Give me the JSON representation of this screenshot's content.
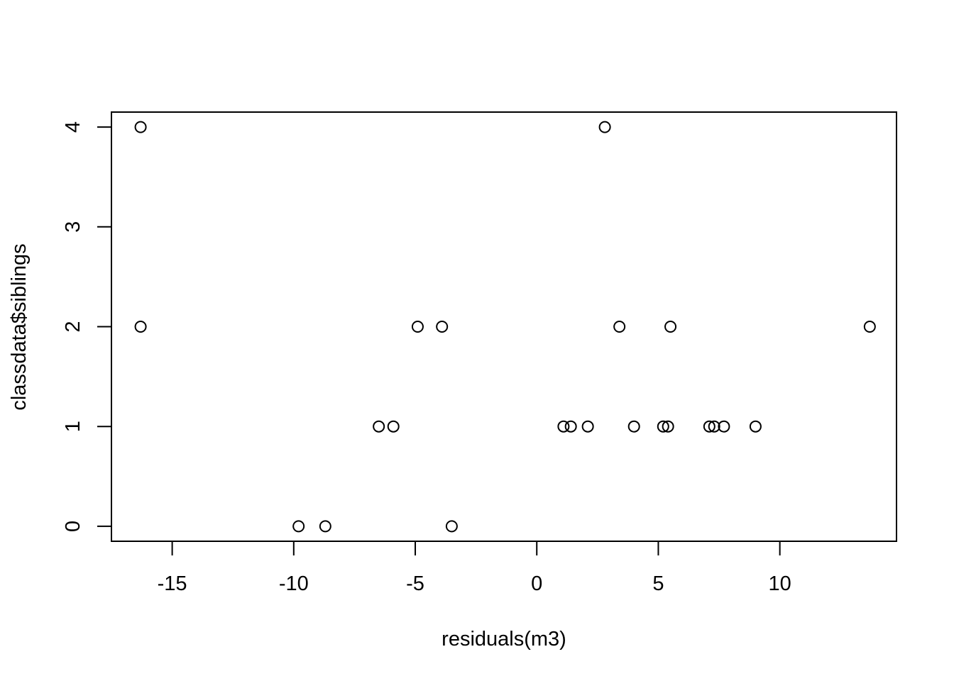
{
  "chart_data": {
    "type": "scatter",
    "title": "",
    "xlabel": "residuals(m3)",
    "ylabel": "classdata$siblings",
    "xlim": [
      -17.5,
      14.8
    ],
    "ylim": [
      -0.15,
      4.15
    ],
    "x_ticks": [
      -15,
      -10,
      -5,
      0,
      5,
      10
    ],
    "x_tick_labels": [
      "-15",
      "-10",
      "-5",
      "0",
      "5",
      "10"
    ],
    "y_ticks": [
      0,
      1,
      2,
      3,
      4
    ],
    "y_tick_labels": [
      "0",
      "1",
      "2",
      "3",
      "4"
    ],
    "grid": false,
    "legend": "none",
    "points": [
      {
        "x": -16.3,
        "y": 4
      },
      {
        "x": -16.3,
        "y": 2
      },
      {
        "x": -9.8,
        "y": 0
      },
      {
        "x": -8.7,
        "y": 0
      },
      {
        "x": -6.5,
        "y": 1
      },
      {
        "x": -5.9,
        "y": 1
      },
      {
        "x": -4.9,
        "y": 2
      },
      {
        "x": -3.9,
        "y": 2
      },
      {
        "x": -3.5,
        "y": 0
      },
      {
        "x": 1.1,
        "y": 1
      },
      {
        "x": 1.4,
        "y": 1
      },
      {
        "x": 2.1,
        "y": 1
      },
      {
        "x": 2.8,
        "y": 4
      },
      {
        "x": 3.4,
        "y": 2
      },
      {
        "x": 4.0,
        "y": 1
      },
      {
        "x": 5.2,
        "y": 1
      },
      {
        "x": 5.4,
        "y": 1
      },
      {
        "x": 5.5,
        "y": 2
      },
      {
        "x": 7.1,
        "y": 1
      },
      {
        "x": 7.3,
        "y": 1
      },
      {
        "x": 7.7,
        "y": 1
      },
      {
        "x": 9.0,
        "y": 1
      },
      {
        "x": 13.7,
        "y": 2
      }
    ]
  }
}
